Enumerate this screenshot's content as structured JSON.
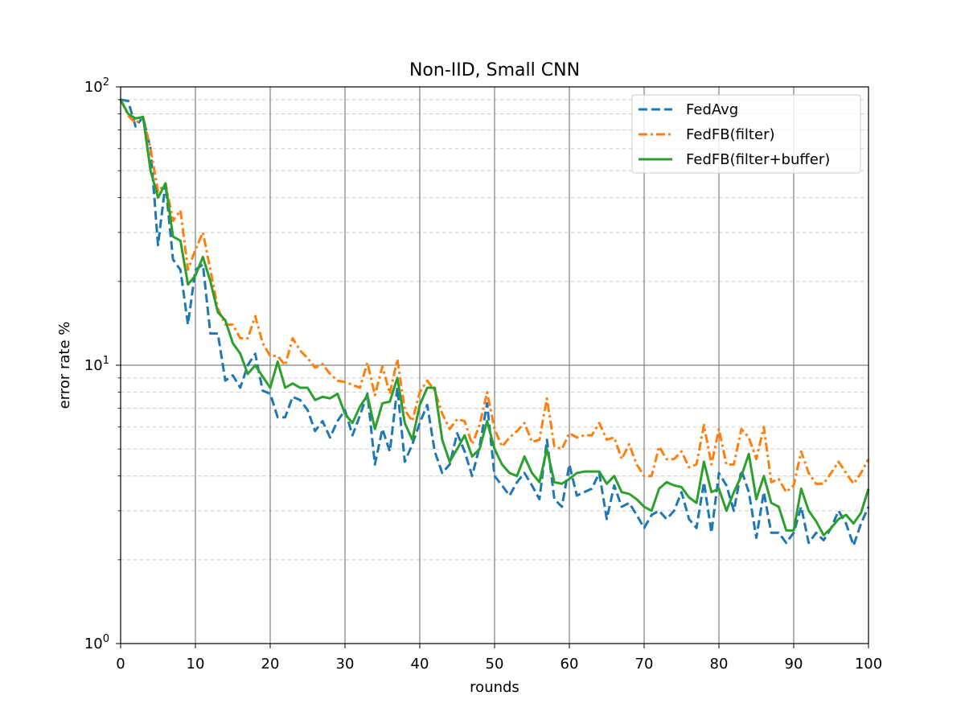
{
  "chart_data": {
    "type": "line",
    "title": "Non-IID, Small CNN",
    "xlabel": "rounds",
    "ylabel": "error rate %",
    "xlim": [
      0,
      100
    ],
    "ylim": [
      1,
      100
    ],
    "yscale": "log",
    "grid": true,
    "legend_position": "top-right",
    "x_ticks": [
      "0",
      "10",
      "20",
      "30",
      "40",
      "50",
      "60",
      "70",
      "80",
      "90",
      "100"
    ],
    "y_ticks": [
      {
        "value": 1,
        "base": "10",
        "exponent": "0"
      },
      {
        "value": 10,
        "base": "10",
        "exponent": "1"
      },
      {
        "value": 100,
        "base": "10",
        "exponent": "2"
      }
    ],
    "x": [
      0,
      1,
      2,
      3,
      4,
      5,
      6,
      7,
      8,
      9,
      10,
      11,
      12,
      13,
      14,
      15,
      16,
      17,
      18,
      19,
      20,
      21,
      22,
      23,
      24,
      25,
      26,
      27,
      28,
      29,
      30,
      31,
      32,
      33,
      34,
      35,
      36,
      37,
      38,
      39,
      40,
      41,
      42,
      43,
      44,
      45,
      46,
      47,
      48,
      49,
      50,
      51,
      52,
      53,
      54,
      55,
      56,
      57,
      58,
      59,
      60,
      61,
      62,
      63,
      64,
      65,
      66,
      67,
      68,
      69,
      70,
      71,
      72,
      73,
      74,
      75,
      76,
      77,
      78,
      79,
      80,
      81,
      82,
      83,
      84,
      85,
      86,
      87,
      88,
      89,
      90,
      91,
      92,
      93,
      94,
      95,
      96,
      97,
      98,
      99,
      100
    ],
    "series": [
      {
        "name": "FedAvg",
        "color": "#1f77b4",
        "dash": "dashed",
        "values": [
          90,
          89,
          72,
          78,
          60,
          27,
          45,
          24,
          22,
          14,
          22,
          23,
          13,
          13,
          8.8,
          9.2,
          8.3,
          10,
          11,
          8.1,
          7.9,
          6.5,
          6.5,
          7.7,
          7.5,
          6.9,
          5.8,
          6.3,
          5.5,
          6.3,
          6.9,
          5.6,
          6.6,
          7.9,
          4.4,
          5.9,
          4.9,
          8.3,
          4.5,
          5.2,
          6.2,
          7.2,
          4.9,
          4.1,
          4.4,
          5.7,
          4.9,
          4.0,
          5.1,
          7.3,
          4.0,
          3.7,
          3.4,
          3.8,
          4.1,
          3.7,
          3.3,
          5.4,
          3.3,
          3.1,
          4.4,
          3.4,
          3.5,
          3.6,
          4.1,
          2.8,
          3.7,
          3.1,
          3.2,
          2.9,
          2.6,
          2.9,
          3.0,
          2.8,
          3.0,
          3.5,
          2.8,
          2.6,
          3.8,
          2.5,
          4.1,
          3.7,
          3.0,
          4.2,
          3.5,
          2.4,
          3.5,
          2.5,
          2.5,
          2.3,
          2.5,
          3.1,
          2.3,
          2.5,
          2.35,
          2.6,
          3.0,
          2.7,
          2.25,
          2.7,
          3.1
        ]
      },
      {
        "name": "FedFB(filter)",
        "color": "#ff7f0e",
        "dash": "dashdot",
        "values": [
          90,
          79,
          74,
          78,
          60,
          42,
          45,
          33,
          36,
          22,
          26,
          30,
          22,
          16,
          14,
          14,
          12.5,
          12.5,
          15,
          12,
          10.8,
          10.8,
          10,
          12.5,
          11.3,
          10.6,
          9.8,
          10.1,
          9.3,
          8.8,
          8.7,
          8.5,
          8.3,
          10.2,
          7.8,
          9.9,
          7.9,
          10.5,
          6.9,
          6.3,
          8.0,
          8.8,
          8.1,
          6.7,
          5.9,
          6.4,
          6.3,
          5.2,
          6.1,
          8.0,
          5.9,
          5.1,
          5.5,
          5.8,
          6.2,
          5.3,
          5.4,
          7.6,
          5.1,
          5.0,
          5.7,
          5.5,
          5.6,
          5.6,
          6.2,
          5.4,
          5.5,
          4.6,
          5.2,
          4.4,
          4.0,
          4.0,
          5.1,
          4.6,
          4.6,
          4.9,
          4.3,
          4.4,
          6.1,
          4.4,
          5.9,
          4.4,
          4.4,
          5.9,
          5.5,
          4.6,
          6.0,
          3.8,
          3.9,
          3.5,
          3.7,
          4.9,
          4.1,
          3.75,
          3.75,
          4.1,
          4.5,
          4.1,
          3.75,
          4.1,
          4.6
        ]
      },
      {
        "name": "FedFB(filter+buffer)",
        "color": "#2ca02c",
        "dash": "solid",
        "values": [
          90,
          80,
          77,
          78,
          50,
          40,
          45,
          29,
          28,
          19.5,
          21,
          24.5,
          20,
          15.5,
          14.5,
          12,
          11,
          9.3,
          10,
          9.1,
          8.3,
          10.3,
          8.3,
          8.6,
          8.3,
          8.3,
          7.5,
          7.7,
          7.6,
          7.9,
          6.7,
          6.2,
          7.1,
          7.8,
          5.9,
          7.3,
          7.4,
          9.0,
          6.2,
          5.4,
          7.2,
          8.3,
          8.3,
          5.4,
          4.5,
          5.0,
          5.6,
          4.7,
          5.0,
          6.3,
          5.0,
          4.4,
          4.1,
          4.0,
          4.7,
          4.1,
          3.8,
          5.0,
          3.8,
          3.75,
          3.9,
          4.1,
          4.15,
          4.15,
          4.15,
          3.75,
          4.0,
          3.5,
          3.45,
          3.3,
          3.1,
          3.0,
          3.6,
          3.8,
          3.7,
          3.65,
          3.35,
          3.2,
          4.5,
          3.5,
          3.6,
          3.0,
          3.5,
          4.0,
          4.8,
          3.3,
          4.0,
          3.2,
          3.1,
          2.55,
          2.55,
          3.6,
          3.0,
          2.75,
          2.45,
          2.6,
          2.8,
          2.9,
          2.7,
          2.95,
          3.6
        ]
      }
    ]
  }
}
